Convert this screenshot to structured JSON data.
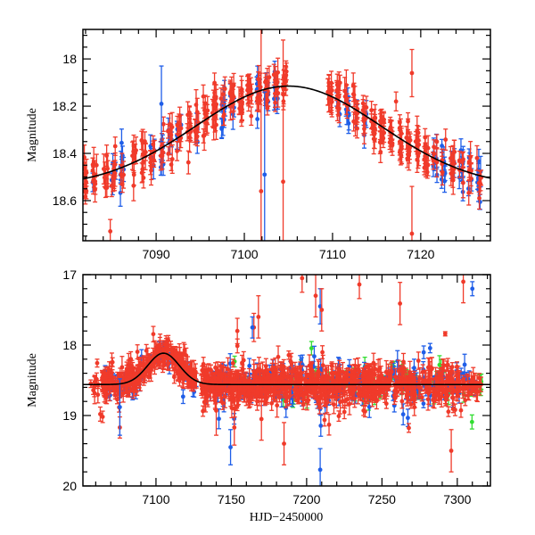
{
  "chart_data": [
    {
      "type": "scatter",
      "panel": "top",
      "title": "",
      "xlabel": "",
      "ylabel": "Magnitude",
      "xlim": [
        7081.7,
        7127.9
      ],
      "ylim": [
        18.77,
        17.875
      ],
      "y_inverted": true,
      "x_ticks_major": [
        7090,
        7100,
        7110,
        7120
      ],
      "x_tick_labels": [
        "7090",
        "7100",
        "7110",
        "7120"
      ],
      "x_minor_step": 2,
      "y_ticks_major": [
        18.0,
        18.2,
        18.4,
        18.6
      ],
      "y_tick_labels": [
        "18",
        "18.2",
        "18.4",
        "18.6"
      ],
      "y_minor_step": 0.05,
      "grid": false,
      "legend": "none",
      "series": [
        {
          "name": "red",
          "color": "#f03a2a"
        },
        {
          "name": "blue",
          "color": "#1f5ee8"
        }
      ],
      "model": {
        "name": "model fit",
        "color": "#000000",
        "baseline": 18.545,
        "peak_mag": 18.115,
        "peak_x": 7105.0,
        "width_days": 10.5
      },
      "seasons": [
        {
          "x": 7081.9,
          "n": 14,
          "blue": 0
        },
        {
          "x": 7083.0,
          "n": 10,
          "blue": 0.3
        },
        {
          "x": 7084.3,
          "n": 9,
          "blue": 0
        },
        {
          "x": 7085.2,
          "n": 12,
          "blue": 0.4
        },
        {
          "x": 7086.2,
          "n": 11,
          "blue": 0.3
        },
        {
          "x": 7087.5,
          "n": 8,
          "blue": 0
        },
        {
          "x": 7088.6,
          "n": 10,
          "blue": 0
        },
        {
          "x": 7089.6,
          "n": 12,
          "blue": 0.4
        },
        {
          "x": 7090.6,
          "n": 12,
          "blue": 0.4
        },
        {
          "x": 7091.6,
          "n": 11,
          "blue": 0.3
        },
        {
          "x": 7092.6,
          "n": 12,
          "blue": 0.4
        },
        {
          "x": 7093.7,
          "n": 10,
          "blue": 0
        },
        {
          "x": 7094.6,
          "n": 12,
          "blue": 0.3
        },
        {
          "x": 7095.6,
          "n": 12,
          "blue": 0
        },
        {
          "x": 7096.6,
          "n": 13,
          "blue": 0
        },
        {
          "x": 7097.6,
          "n": 14,
          "blue": 0.4
        },
        {
          "x": 7098.6,
          "n": 14,
          "blue": 0.3
        },
        {
          "x": 7099.6,
          "n": 13,
          "blue": 0
        },
        {
          "x": 7100.6,
          "n": 14,
          "blue": 0
        },
        {
          "x": 7101.6,
          "n": 16,
          "blue": 0.4
        },
        {
          "x": 7102.6,
          "n": 14,
          "blue": 0.3
        },
        {
          "x": 7103.6,
          "n": 14,
          "blue": 0.3
        },
        {
          "x": 7104.6,
          "n": 12,
          "blue": 0
        },
        {
          "x": 7109.7,
          "n": 14,
          "blue": 0
        },
        {
          "x": 7110.6,
          "n": 14,
          "blue": 0.4
        },
        {
          "x": 7111.6,
          "n": 14,
          "blue": 0.4
        },
        {
          "x": 7112.6,
          "n": 14,
          "blue": 0.3
        },
        {
          "x": 7113.6,
          "n": 13,
          "blue": 0.3
        },
        {
          "x": 7114.6,
          "n": 12,
          "blue": 0
        },
        {
          "x": 7115.6,
          "n": 12,
          "blue": 0
        },
        {
          "x": 7116.6,
          "n": 12,
          "blue": 0
        },
        {
          "x": 7117.6,
          "n": 12,
          "blue": 0
        },
        {
          "x": 7118.6,
          "n": 12,
          "blue": 0
        },
        {
          "x": 7119.6,
          "n": 12,
          "blue": 0
        },
        {
          "x": 7120.6,
          "n": 12,
          "blue": 0
        },
        {
          "x": 7121.6,
          "n": 12,
          "blue": 0.4
        },
        {
          "x": 7122.6,
          "n": 12,
          "blue": 0.4
        },
        {
          "x": 7123.6,
          "n": 12,
          "blue": 0.2
        },
        {
          "x": 7124.6,
          "n": 12,
          "blue": 0.5
        },
        {
          "x": 7125.6,
          "n": 12,
          "blue": 0.5
        },
        {
          "x": 7126.6,
          "n": 14,
          "blue": 0.6
        }
      ],
      "notable_points": [
        {
          "series": "blue",
          "x": 7090.6,
          "y": 18.19,
          "err": 0.16
        },
        {
          "series": "red",
          "x": 7119.0,
          "y": 18.06,
          "err": 0.1
        },
        {
          "series": "red",
          "x": 7117.2,
          "y": 18.18,
          "err": 0.04
        },
        {
          "series": "red",
          "x": 7101.9,
          "y": 18.56,
          "err": 0.9
        },
        {
          "series": "red",
          "x": 7104.4,
          "y": 18.52,
          "err": 0.6
        },
        {
          "series": "blue",
          "x": 7102.3,
          "y": 18.49,
          "err": 0.35
        },
        {
          "series": "red",
          "x": 7084.8,
          "y": 18.73,
          "err": 0.05
        },
        {
          "series": "red",
          "x": 7119.0,
          "y": 18.74,
          "err": 0.2
        }
      ]
    },
    {
      "type": "scatter",
      "panel": "bottom",
      "title": "",
      "xlabel": "HJD−2450000",
      "ylabel": "Magnitude",
      "xlim": [
        7051.5,
        7322.0
      ],
      "ylim": [
        20,
        17
      ],
      "y_inverted": true,
      "x_ticks_major": [
        7100,
        7150,
        7200,
        7250,
        7300
      ],
      "x_tick_labels": [
        "7100",
        "7150",
        "7200",
        "7250",
        "7300"
      ],
      "x_minor_step": 10,
      "y_ticks_major": [
        17,
        18,
        19,
        20
      ],
      "y_tick_labels": [
        "17",
        "18",
        "19",
        "20"
      ],
      "y_minor_step": 0.2,
      "grid": false,
      "legend": "none",
      "series": [
        {
          "name": "red",
          "color": "#f03a2a"
        },
        {
          "name": "blue",
          "color": "#1f5ee8"
        },
        {
          "name": "green",
          "color": "#33dd33"
        }
      ],
      "model": {
        "name": "model fit",
        "color": "#000000",
        "baseline": 18.56,
        "peak_mag": 18.115,
        "peak_x": 7105.0,
        "width_days": 10.5
      },
      "segments": [
        {
          "x0": 7056,
          "x1": 7062,
          "n": 10,
          "scatter": 0.12,
          "blue": 0.0,
          "green": 0.0
        },
        {
          "x0": 7064,
          "x1": 7127,
          "n": 320,
          "scatter": 0.08,
          "blue": 0.15,
          "green": 0.0,
          "follow_model": true
        },
        {
          "x0": 7130,
          "x1": 7184,
          "n": 360,
          "scatter": 0.12,
          "blue": 0.2,
          "green": 0.02
        },
        {
          "x0": 7184,
          "x1": 7240,
          "n": 360,
          "scatter": 0.14,
          "blue": 0.2,
          "green": 0.08
        },
        {
          "x0": 7240,
          "x1": 7310,
          "n": 360,
          "scatter": 0.12,
          "blue": 0.22,
          "green": 0.1
        },
        {
          "x0": 7310,
          "x1": 7316,
          "n": 20,
          "scatter": 0.06,
          "blue": 0.1,
          "green": 0.3
        }
      ],
      "notable_points": [
        {
          "series": "blue",
          "x": 7149.5,
          "y": 19.45,
          "err": 0.25
        },
        {
          "series": "red",
          "x": 7152,
          "y": 19.17,
          "err": 0.25
        },
        {
          "series": "red",
          "x": 7154,
          "y": 17.8,
          "err": 0.18
        },
        {
          "series": "red",
          "x": 7076,
          "y": 19.17,
          "err": 0.15
        },
        {
          "series": "blue",
          "x": 7076,
          "y": 18.88,
          "err": 0.4
        },
        {
          "series": "red",
          "x": 7063,
          "y": 18.98,
          "err": 0.1
        },
        {
          "series": "red",
          "x": 7119,
          "y": 18.07,
          "err": 0.08
        },
        {
          "series": "red",
          "x": 7140,
          "y": 18.93,
          "err": 0.35
        },
        {
          "series": "red",
          "x": 7197,
          "y": 17.05,
          "err": 0.2
        },
        {
          "series": "red",
          "x": 7206,
          "y": 17.3,
          "err": 0.3
        },
        {
          "series": "blue",
          "x": 7209,
          "y": 17.45,
          "err": 0.25
        },
        {
          "series": "red",
          "x": 7210,
          "y": 17.5,
          "err": 0.3
        },
        {
          "series": "blue",
          "x": 7209,
          "y": 19.77,
          "err": 0.3
        },
        {
          "series": "red",
          "x": 7235,
          "y": 17.14,
          "err": 0.2
        },
        {
          "series": "red",
          "x": 7262,
          "y": 17.41,
          "err": 0.3
        },
        {
          "series": "red",
          "x": 7304,
          "y": 17.1,
          "err": 0.3
        },
        {
          "series": "blue",
          "x": 7310,
          "y": 17.2,
          "err": 0.1
        },
        {
          "series": "red",
          "x": 7292,
          "y": 17.84,
          "err": 0.03
        },
        {
          "series": "red",
          "x": 7296,
          "y": 19.5,
          "err": 0.3
        },
        {
          "series": "red",
          "x": 7185,
          "y": 19.4,
          "err": 0.3
        },
        {
          "series": "red",
          "x": 7168,
          "y": 17.6,
          "err": 0.3
        },
        {
          "series": "red",
          "x": 7165,
          "y": 17.75,
          "err": 0.2
        },
        {
          "series": "blue",
          "x": 7164,
          "y": 17.75,
          "err": 0.15
        },
        {
          "series": "red",
          "x": 7170,
          "y": 19.05,
          "err": 0.3
        }
      ]
    }
  ]
}
